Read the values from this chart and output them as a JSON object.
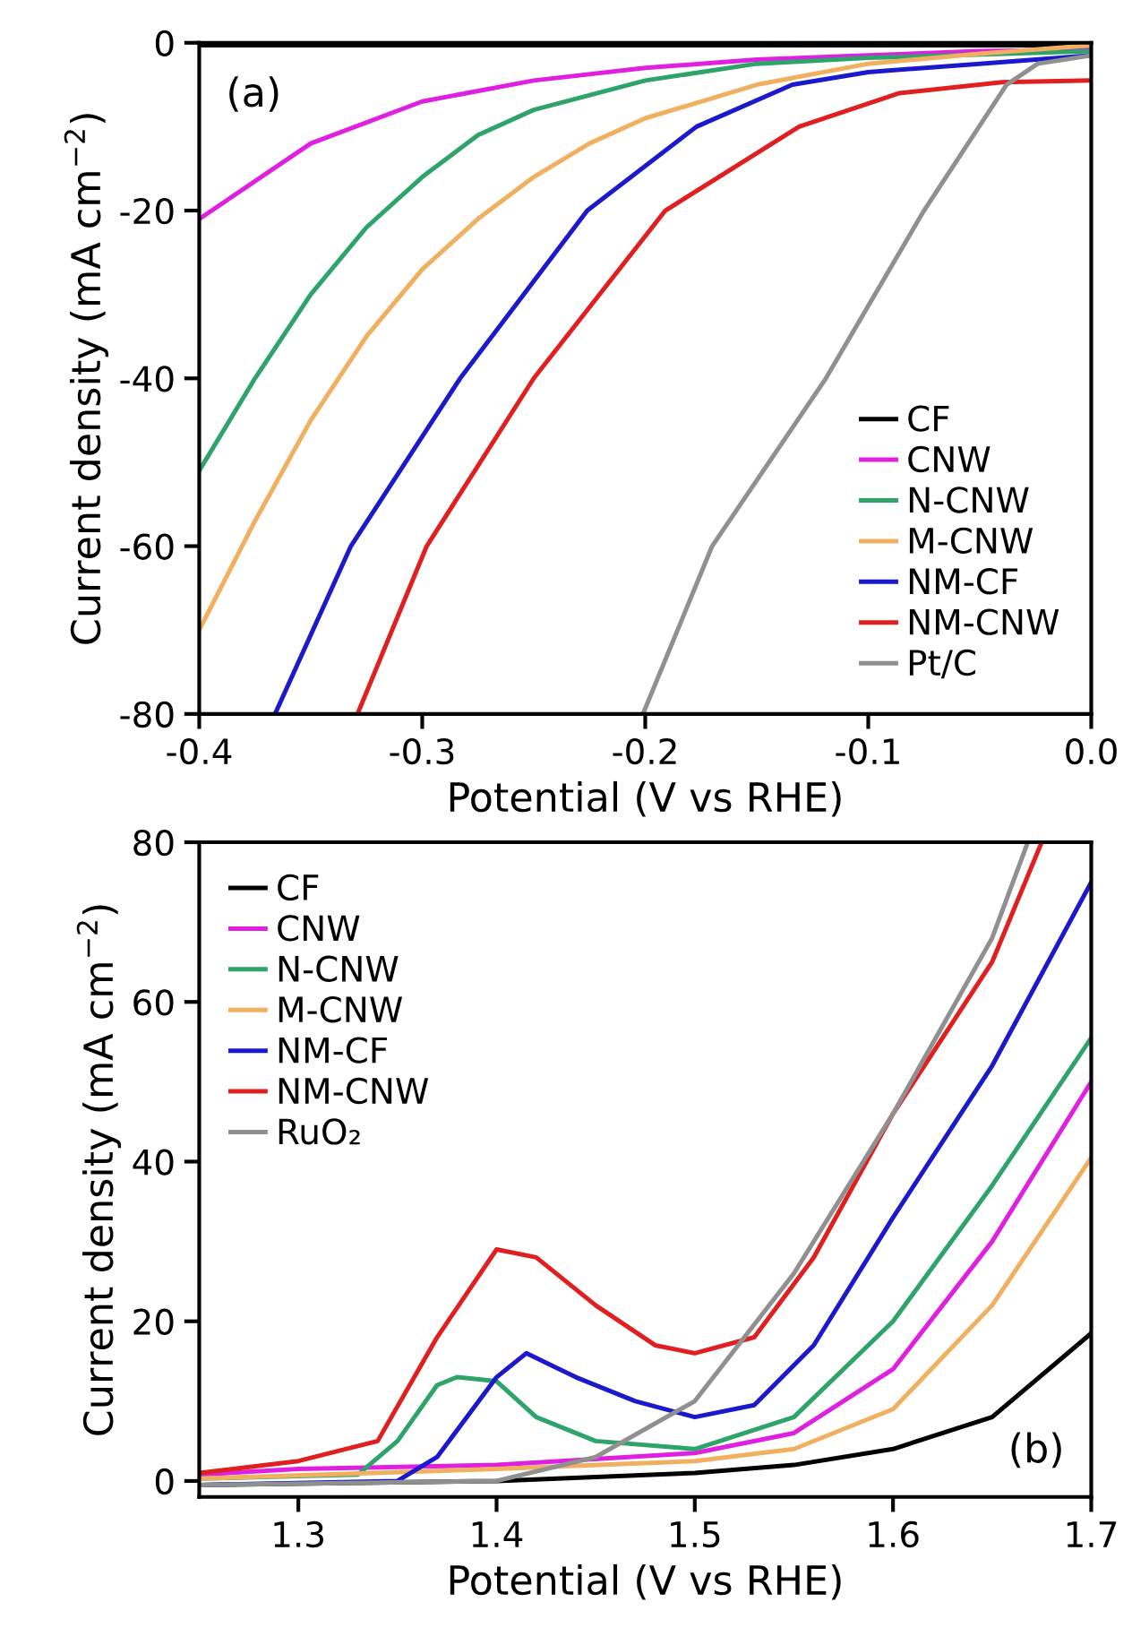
{
  "chart_data": [
    {
      "type": "line",
      "xlabel": "Potential (V vs RHE)",
      "ylabel": "Current density (mA cm$^{−2}$)",
      "annotations": [
        "(a)"
      ],
      "xlim": [
        -0.4,
        0.0
      ],
      "ylim": [
        -80,
        0
      ],
      "xticks": [
        {
          "value": -0.4,
          "label": "-0.4"
        },
        {
          "value": -0.3,
          "label": "-0.3"
        },
        {
          "value": -0.2,
          "label": "-0.2"
        },
        {
          "value": -0.1,
          "label": "-0.1"
        },
        {
          "value": 0.0,
          "label": "0.0"
        }
      ],
      "yticks": [
        {
          "value": -80,
          "label": "-80"
        },
        {
          "value": -60,
          "label": "-60"
        },
        {
          "value": -40,
          "label": "-40"
        },
        {
          "value": -20,
          "label": "-20"
        },
        0
      ],
      "legend": "bottom right",
      "grid": false,
      "series": [
        {
          "name": "CF",
          "color": "#000000",
          "x": [
            -0.4,
            -0.2,
            0.0
          ],
          "values": [
            -0.3,
            -0.3,
            -0.3
          ]
        },
        {
          "name": "CNW",
          "color": "#e020e0",
          "x": [
            -0.4,
            -0.35,
            -0.3,
            -0.25,
            -0.2,
            -0.15,
            -0.1,
            -0.05,
            0.0
          ],
          "values": [
            -21,
            -12,
            -7,
            -4.5,
            -3,
            -2,
            -1.5,
            -1,
            -0.8
          ]
        },
        {
          "name": "N-CNW",
          "color": "#2ea36a",
          "x": [
            -0.4,
            -0.375,
            -0.35,
            -0.325,
            -0.3,
            -0.275,
            -0.25,
            -0.2,
            -0.15,
            -0.1,
            0.0
          ],
          "values": [
            -51,
            -40,
            -30,
            -22,
            -16,
            -11,
            -8,
            -4.5,
            -2.5,
            -1.8,
            -1
          ]
        },
        {
          "name": "M-CNW",
          "color": "#f0b060",
          "x": [
            -0.4,
            -0.375,
            -0.35,
            -0.325,
            -0.3,
            -0.275,
            -0.25,
            -0.225,
            -0.2,
            -0.15,
            -0.1,
            -0.05,
            0.0
          ],
          "values": [
            -70,
            -57,
            -45,
            -35,
            -27,
            -21,
            -16,
            -12,
            -9,
            -5,
            -2.5,
            -1.3,
            -0.3
          ]
        },
        {
          "name": "NM-CF",
          "color": "#1a1acc",
          "x": [
            -0.366,
            -0.332,
            -0.283,
            -0.226,
            -0.177,
            -0.134,
            -0.1,
            -0.05,
            0.0
          ],
          "values": [
            -80,
            -60,
            -40,
            -20,
            -10,
            -5,
            -3.5,
            -2.5,
            -1.5
          ]
        },
        {
          "name": "NM-CNW",
          "color": "#e02020",
          "x": [
            -0.329,
            -0.298,
            -0.25,
            -0.191,
            -0.131,
            -0.086,
            -0.04,
            0.0
          ],
          "values": [
            -80,
            -60,
            -40,
            -20,
            -10,
            -6,
            -4.7,
            -4.5
          ]
        },
        {
          "name": "Pt/C",
          "color": "#909090",
          "x": [
            -0.201,
            -0.17,
            -0.119,
            -0.075,
            -0.038,
            -0.024,
            0.0
          ],
          "values": [
            -80,
            -60,
            -40,
            -20,
            -5,
            -2.5,
            -1.5
          ]
        }
      ]
    },
    {
      "type": "line",
      "xlabel": "Potential (V vs RHE)",
      "ylabel": "Current density (mA cm$^{−2}$)",
      "annotations": [
        "(b)"
      ],
      "xlim": [
        1.25,
        1.7
      ],
      "ylim": [
        -2,
        80
      ],
      "xticks": [
        1.3,
        1.4,
        1.5,
        1.6,
        1.7
      ],
      "yticks": [
        0,
        20,
        40,
        60,
        80
      ],
      "legend": "top left",
      "grid": false,
      "series": [
        {
          "name": "CF",
          "color": "#000000",
          "x": [
            1.25,
            1.4,
            1.5,
            1.55,
            1.6,
            1.65,
            1.7
          ],
          "values": [
            -0.5,
            0,
            1,
            2,
            4,
            8,
            18.5
          ]
        },
        {
          "name": "CNW",
          "color": "#e020e0",
          "x": [
            1.25,
            1.3,
            1.4,
            1.5,
            1.55,
            1.6,
            1.65,
            1.7
          ],
          "values": [
            0.8,
            1.5,
            2,
            3.5,
            6,
            14,
            30,
            50
          ]
        },
        {
          "name": "N-CNW",
          "color": "#2ea36a",
          "x": [
            1.25,
            1.33,
            1.35,
            1.37,
            1.38,
            1.4,
            1.42,
            1.45,
            1.5,
            1.55,
            1.6,
            1.65,
            1.7
          ],
          "values": [
            0.3,
            0.8,
            5,
            12,
            13,
            12.5,
            8,
            5,
            4,
            8,
            20,
            37,
            55.5
          ]
        },
        {
          "name": "M-CNW",
          "color": "#f0b060",
          "x": [
            1.25,
            1.4,
            1.5,
            1.55,
            1.6,
            1.65,
            1.7
          ],
          "values": [
            0.3,
            1.5,
            2.5,
            4,
            9,
            22,
            40.5
          ]
        },
        {
          "name": "NM-CF",
          "color": "#1a1acc",
          "x": [
            1.25,
            1.35,
            1.37,
            1.4,
            1.415,
            1.44,
            1.47,
            1.5,
            1.53,
            1.56,
            1.6,
            1.65,
            1.7
          ],
          "values": [
            -0.5,
            0,
            3,
            13,
            16,
            13,
            10,
            8,
            9.5,
            17,
            33,
            52,
            75
          ]
        },
        {
          "name": "NM-CNW",
          "color": "#e02020",
          "x": [
            1.25,
            1.3,
            1.34,
            1.37,
            1.4,
            1.42,
            1.45,
            1.48,
            1.5,
            1.53,
            1.56,
            1.6,
            1.65,
            1.675
          ],
          "values": [
            1,
            2.5,
            5,
            18,
            29,
            28,
            22,
            17,
            16,
            18,
            28,
            46,
            65,
            80
          ]
        },
        {
          "name": "RuO₂",
          "color": "#909090",
          "x": [
            1.25,
            1.4,
            1.45,
            1.5,
            1.55,
            1.6,
            1.65,
            1.668
          ],
          "values": [
            -0.5,
            0,
            3,
            10,
            26,
            46,
            68,
            80
          ]
        }
      ]
    }
  ]
}
